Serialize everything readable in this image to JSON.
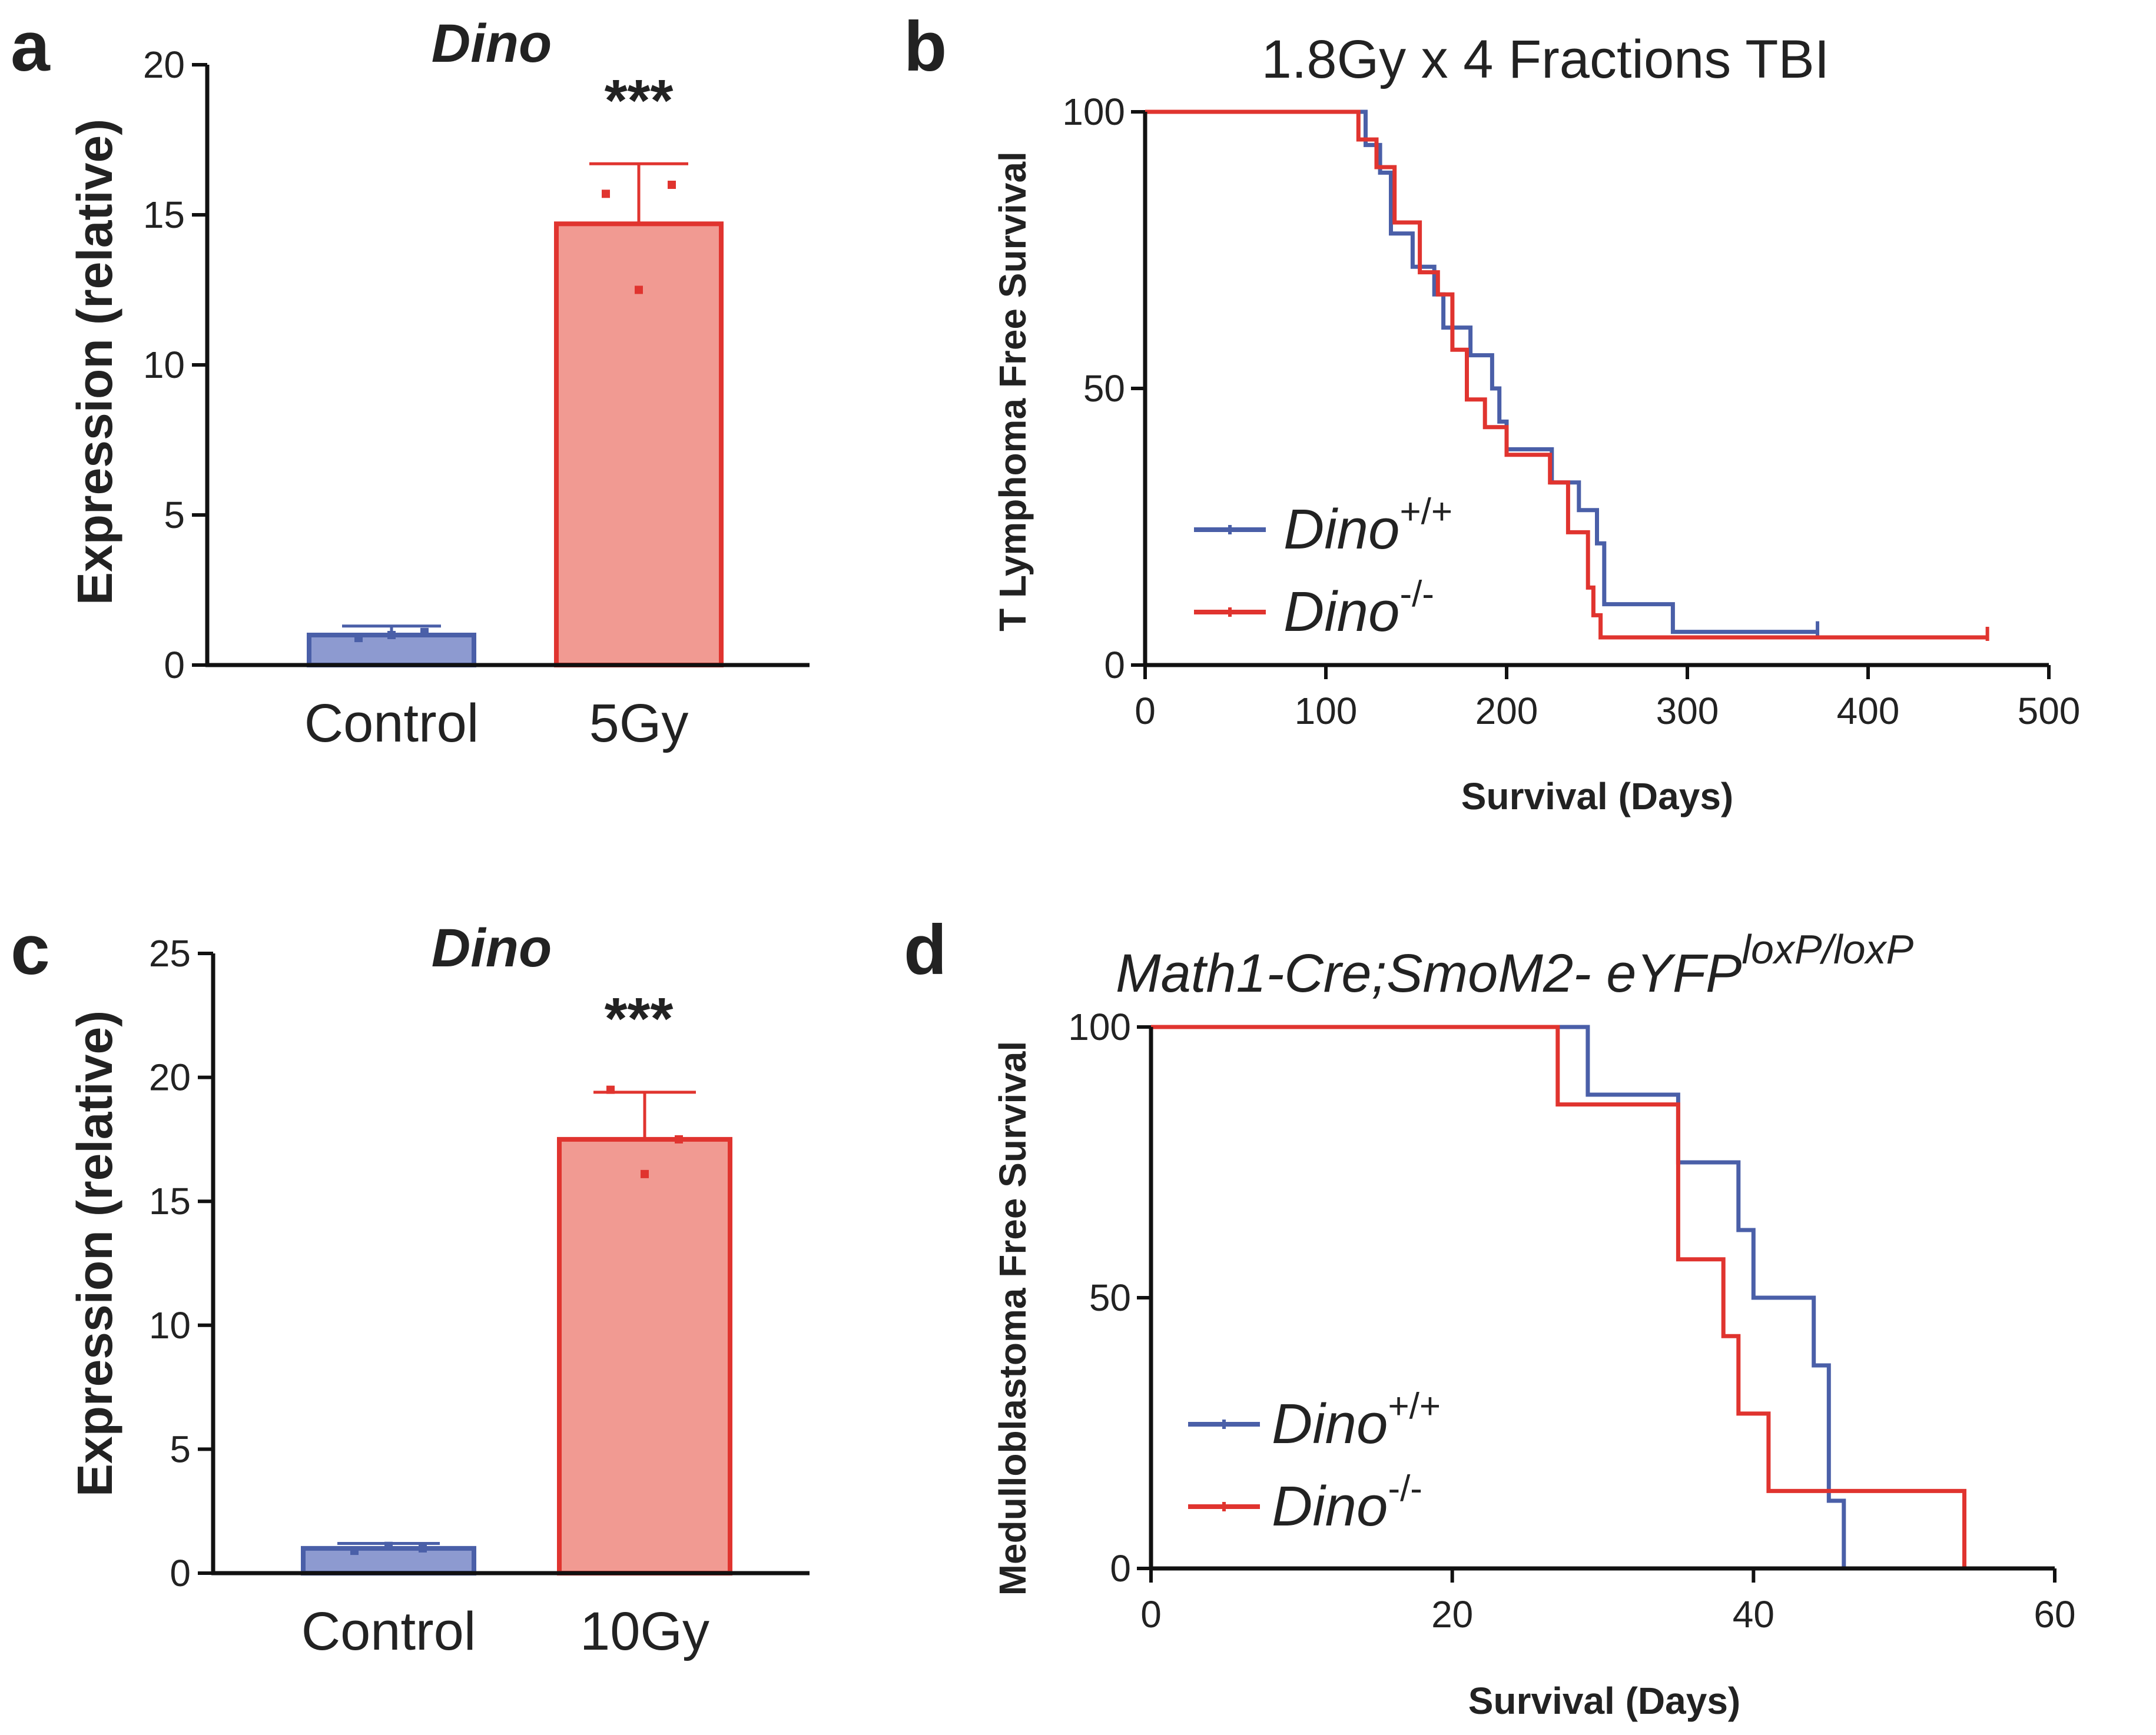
{
  "panels": {
    "a": "a",
    "b": "b",
    "c": "c",
    "d": "d"
  },
  "colors": {
    "blue": "#4a5fa8",
    "blue_fill": "#8d9ad0",
    "red": "#e0342f",
    "red_fill": "#f19a92"
  },
  "chart_data": [
    {
      "id": "a",
      "type": "bar",
      "title": "Dino",
      "xlabel": "",
      "ylabel": "Expression (relative)",
      "categories": [
        "Control",
        "5Gy"
      ],
      "values": [
        1.0,
        14.7
      ],
      "errors": [
        0.3,
        2.0
      ],
      "points": [
        [
          0.9,
          1.1,
          1.0
        ],
        [
          15.7,
          16.0,
          12.5
        ]
      ],
      "ylim": [
        0,
        20
      ],
      "yticks": [
        0,
        5,
        10,
        15,
        20
      ],
      "annotation": "***"
    },
    {
      "id": "b",
      "type": "line",
      "subtype": "kaplan-meier",
      "title": "1.8Gy x 4 Fractions TBI",
      "xlabel": "Survival (Days)",
      "ylabel": "T Lymphoma Free Survival",
      "xlim": [
        0,
        500
      ],
      "ylim": [
        0,
        100
      ],
      "xticks": [
        0,
        100,
        200,
        300,
        400,
        500
      ],
      "yticks": [
        0,
        50,
        100
      ],
      "series": [
        {
          "name": "Dino",
          "superscript": "+/+",
          "color": "blue",
          "steps": [
            [
              0,
              100
            ],
            [
              122,
              100
            ],
            [
              122,
              94
            ],
            [
              130,
              94
            ],
            [
              130,
              89
            ],
            [
              136,
              89
            ],
            [
              136,
              78
            ],
            [
              148,
              78
            ],
            [
              148,
              72
            ],
            [
              160,
              72
            ],
            [
              160,
              67
            ],
            [
              165,
              67
            ],
            [
              165,
              61
            ],
            [
              180,
              61
            ],
            [
              180,
              56
            ],
            [
              192,
              56
            ],
            [
              192,
              50
            ],
            [
              196,
              50
            ],
            [
              196,
              44
            ],
            [
              200,
              44
            ],
            [
              200,
              39
            ],
            [
              225,
              39
            ],
            [
              225,
              33
            ],
            [
              240,
              33
            ],
            [
              240,
              28
            ],
            [
              250,
              28
            ],
            [
              250,
              22
            ],
            [
              254,
              22
            ],
            [
              254,
              11
            ],
            [
              292,
              11
            ],
            [
              292,
              6
            ],
            [
              372,
              6
            ]
          ],
          "censored": [
            [
              372,
              6
            ]
          ]
        },
        {
          "name": "Dino",
          "superscript": "-/-",
          "color": "red",
          "steps": [
            [
              0,
              100
            ],
            [
              118,
              100
            ],
            [
              118,
              95
            ],
            [
              128,
              95
            ],
            [
              128,
              90
            ],
            [
              138,
              90
            ],
            [
              138,
              80
            ],
            [
              152,
              80
            ],
            [
              152,
              71
            ],
            [
              162,
              71
            ],
            [
              162,
              67
            ],
            [
              170,
              67
            ],
            [
              170,
              57
            ],
            [
              178,
              57
            ],
            [
              178,
              48
            ],
            [
              188,
              48
            ],
            [
              188,
              43
            ],
            [
              200,
              43
            ],
            [
              200,
              38
            ],
            [
              224,
              38
            ],
            [
              224,
              33
            ],
            [
              234,
              33
            ],
            [
              234,
              24
            ],
            [
              245,
              24
            ],
            [
              245,
              14
            ],
            [
              248,
              14
            ],
            [
              248,
              9
            ],
            [
              252,
              9
            ],
            [
              252,
              5
            ],
            [
              466,
              5
            ]
          ],
          "censored": [
            [
              466,
              5
            ]
          ]
        }
      ],
      "legend_position": "bottom-left"
    },
    {
      "id": "c",
      "type": "bar",
      "title": "Dino",
      "xlabel": "",
      "ylabel": "Expression (relative)",
      "categories": [
        "Control",
        "10Gy"
      ],
      "values": [
        1.0,
        17.5
      ],
      "errors": [
        0.2,
        1.9
      ],
      "points": [
        [
          0.9,
          1.0,
          1.1
        ],
        [
          19.5,
          17.5,
          16.1
        ]
      ],
      "ylim": [
        0,
        25
      ],
      "yticks": [
        0,
        5,
        10,
        15,
        20,
        25
      ],
      "annotation": "***"
    },
    {
      "id": "d",
      "type": "line",
      "subtype": "kaplan-meier",
      "title_main": "Math1-Cre;SmoM2- eYFP",
      "title_superscript": "loxP/loxP",
      "xlabel": "Survival (Days)",
      "ylabel": "Medulloblastoma Free Survival",
      "xlim": [
        0,
        60
      ],
      "ylim": [
        0,
        100
      ],
      "xticks": [
        0,
        20,
        40,
        60
      ],
      "yticks": [
        0,
        50,
        100
      ],
      "series": [
        {
          "name": "Dino",
          "superscript": "+/+",
          "color": "blue",
          "steps": [
            [
              0,
              100
            ],
            [
              29,
              100
            ],
            [
              29,
              87.5
            ],
            [
              35,
              87.5
            ],
            [
              35,
              75
            ],
            [
              39,
              75
            ],
            [
              39,
              62.5
            ],
            [
              40,
              62.5
            ],
            [
              40,
              50
            ],
            [
              44,
              50
            ],
            [
              44,
              37.5
            ],
            [
              45,
              37.5
            ],
            [
              45,
              12.5
            ],
            [
              46,
              12.5
            ],
            [
              46,
              0
            ]
          ],
          "censored": []
        },
        {
          "name": "Dino",
          "superscript": "-/-",
          "color": "red",
          "steps": [
            [
              0,
              100
            ],
            [
              27,
              100
            ],
            [
              27,
              85.7
            ],
            [
              35,
              85.7
            ],
            [
              35,
              57.1
            ],
            [
              38,
              57.1
            ],
            [
              38,
              42.9
            ],
            [
              39,
              42.9
            ],
            [
              39,
              28.6
            ],
            [
              41,
              28.6
            ],
            [
              41,
              14.3
            ],
            [
              54,
              14.3
            ],
            [
              54,
              0
            ]
          ],
          "censored": []
        }
      ],
      "legend_position": "bottom-left"
    }
  ]
}
